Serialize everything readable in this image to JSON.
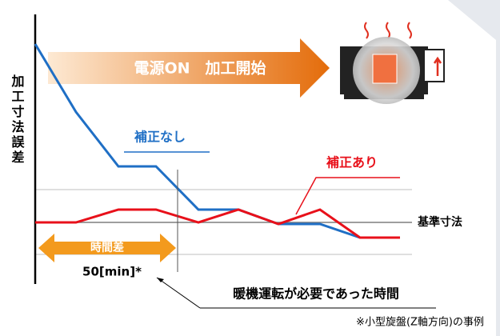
{
  "header": {
    "title": "電源ON　加工開始"
  },
  "axis": {
    "label": "加工寸法誤差"
  },
  "series": {
    "uncorrected": "補正なし",
    "corrected": "補正あり"
  },
  "reference": "基準寸法",
  "delay": {
    "label": "時間差",
    "value": "50[min]*"
  },
  "callout": "暖機運転が必要であった時間",
  "footnote": "※小型旋盤(Z軸方向)の事例"
}
